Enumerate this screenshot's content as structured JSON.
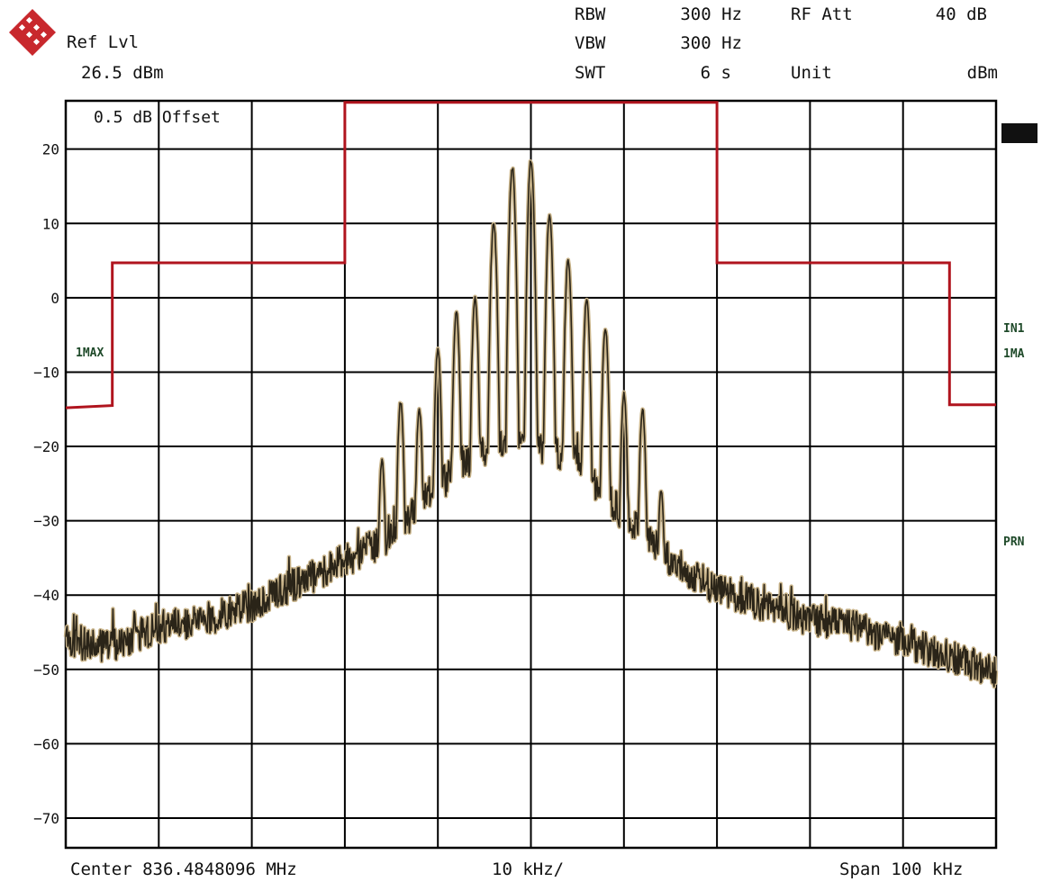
{
  "header": {
    "ref_lvl_label": "Ref Lvl",
    "ref_lvl_value": "26.5 dBm",
    "rbw_label": "RBW",
    "rbw_value": "300 Hz",
    "vbw_label": "VBW",
    "vbw_value": "300 Hz",
    "swt_label": "SWT",
    "swt_value": "6 s",
    "rf_att_label": "RF Att",
    "rf_att_value": "40 dB",
    "unit_label": "Unit",
    "unit_value": "dBm"
  },
  "offset_note": "0.5 dB Offset",
  "footer": {
    "center": "Center 836.4848096 MHz",
    "division": "10 kHz/",
    "span": "Span 100 kHz"
  },
  "side_labels": {
    "trace_left": "1MAX",
    "in1": "IN1",
    "ma": "1MA",
    "prn": "PRN"
  },
  "colors": {
    "trace": "#2a2418",
    "trace_fill": "#c9b48a",
    "mask": "#b0141e",
    "grid": "#000000"
  },
  "chart_data": {
    "type": "line",
    "title": "",
    "xlabel": "",
    "ylabel": "",
    "center_mhz": 836.4848096,
    "span_khz": 100,
    "xlim_khz": [
      -50,
      50
    ],
    "ylim": [
      -74,
      26.5
    ],
    "grid": true,
    "yticks": [
      20,
      10,
      0,
      -10,
      -20,
      -30,
      -40,
      -50,
      -60,
      -70
    ],
    "mask": {
      "name": "",
      "points": [
        [
          -50,
          -14.8
        ],
        [
          -45,
          -14.5
        ],
        [
          -45,
          4.7
        ],
        [
          -20,
          4.7
        ],
        [
          -20,
          26.3
        ],
        [
          20,
          26.3
        ],
        [
          20,
          4.7
        ],
        [
          45,
          4.7
        ],
        [
          45,
          -14.4
        ],
        [
          50,
          -14.4
        ]
      ]
    },
    "trace": {
      "name": "1MAX",
      "peak_spacing_khz": 2.0,
      "peaks": [
        [
          -16,
          -22
        ],
        [
          -14,
          -14
        ],
        [
          -12,
          -15
        ],
        [
          -10,
          -7
        ],
        [
          -8,
          -2
        ],
        [
          -6,
          0
        ],
        [
          -4,
          10
        ],
        [
          -2,
          17.5
        ],
        [
          0,
          18.5
        ],
        [
          2,
          11
        ],
        [
          4,
          5
        ],
        [
          6,
          0
        ],
        [
          8,
          -4
        ],
        [
          10,
          -13
        ],
        [
          12,
          -15
        ],
        [
          14,
          -26
        ]
      ],
      "floor_points": [
        [
          -50,
          -47
        ],
        [
          -45,
          -47.5
        ],
        [
          -40,
          -45
        ],
        [
          -35,
          -44
        ],
        [
          -30,
          -42
        ],
        [
          -25,
          -39
        ],
        [
          -20,
          -36
        ],
        [
          -15,
          -33
        ],
        [
          -10,
          -26
        ],
        [
          -5,
          -21
        ],
        [
          0,
          -20
        ],
        [
          5,
          -23
        ],
        [
          10,
          -30
        ],
        [
          15,
          -36
        ],
        [
          20,
          -40
        ],
        [
          25,
          -42
        ],
        [
          30,
          -44
        ],
        [
          35,
          -45
        ],
        [
          40,
          -47
        ],
        [
          45,
          -49
        ],
        [
          50,
          -51
        ]
      ]
    }
  }
}
